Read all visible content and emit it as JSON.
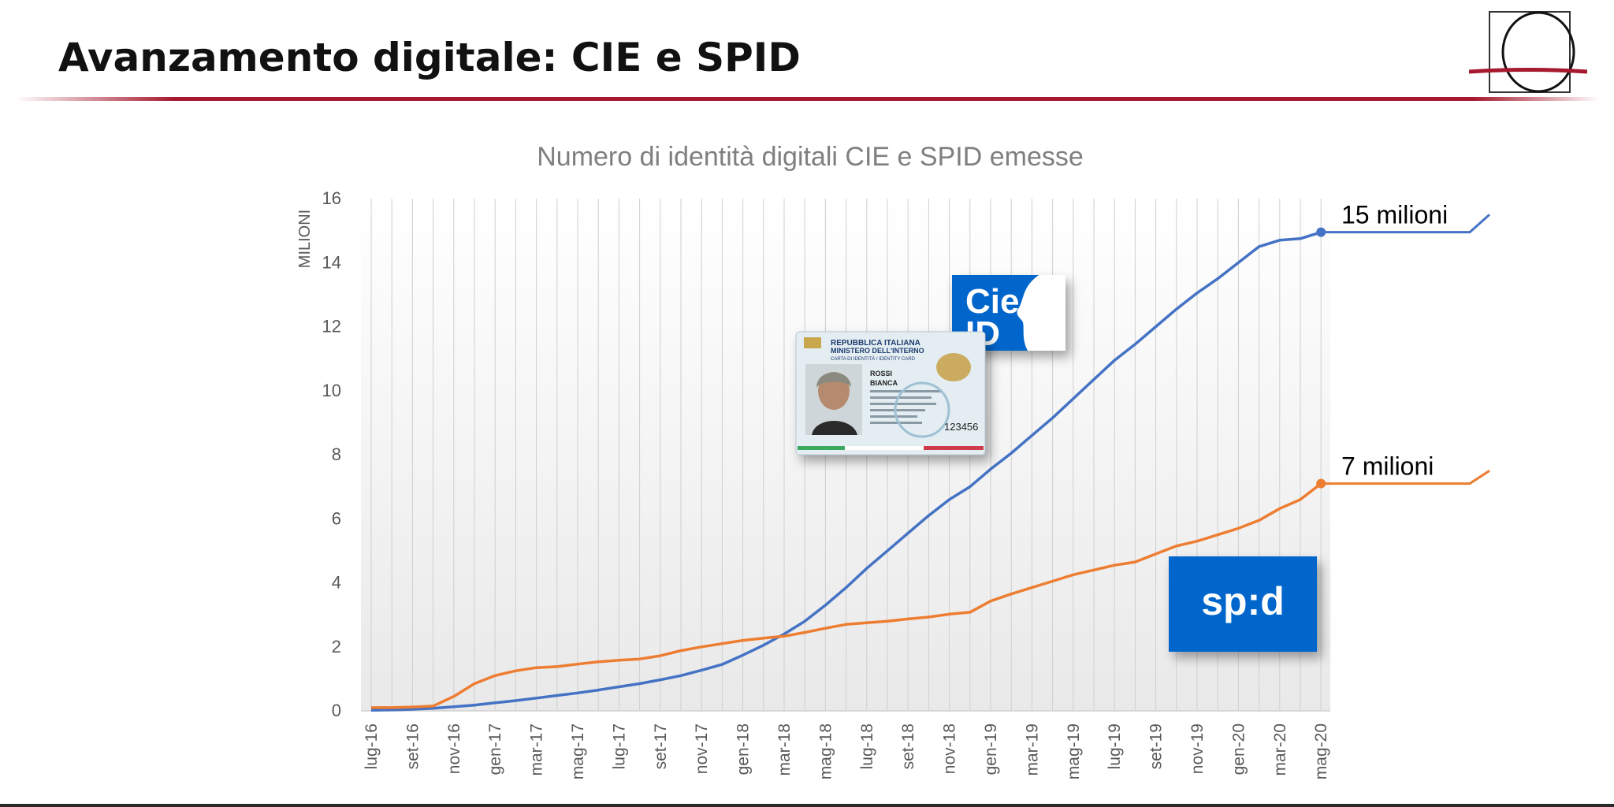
{
  "page": {
    "title": "Avanzamento digitale: CIE e SPID"
  },
  "logos": {
    "cie": {
      "line1": "Cie",
      "line2": "ID",
      "color": "#0066cc"
    },
    "spid": {
      "text": "sp:d",
      "color": "#0066cc"
    },
    "card": {
      "header1": "REPUBBLICA ITALIANA",
      "header2": "MINISTERO DELL'INTERNO",
      "header3": "CARTA DI IDENTITÀ / IDENTITY CARD",
      "surname": "ROSSI",
      "name": "BIANCA",
      "number": "123456"
    }
  },
  "chart_data": {
    "type": "line",
    "title": "Numero di identità digitali CIE e SPID emesse",
    "ylabel": "MILIONI",
    "ylim": [
      0,
      16
    ],
    "yticks": [
      0,
      2,
      4,
      6,
      8,
      10,
      12,
      14,
      16
    ],
    "xtick_labels": [
      "lug-16",
      "set-16",
      "nov-16",
      "gen-17",
      "mar-17",
      "mag-17",
      "lug-17",
      "set-17",
      "nov-17",
      "gen-18",
      "mar-18",
      "mag-18",
      "lug-18",
      "set-18",
      "nov-18",
      "gen-19",
      "mar-19",
      "mag-19",
      "lug-19",
      "set-19",
      "nov-19",
      "gen-20",
      "mar-20",
      "mag-20"
    ],
    "x": [
      "lug-16",
      "ago-16",
      "set-16",
      "ott-16",
      "nov-16",
      "dic-16",
      "gen-17",
      "feb-17",
      "mar-17",
      "apr-17",
      "mag-17",
      "giu-17",
      "lug-17",
      "ago-17",
      "set-17",
      "ott-17",
      "nov-17",
      "dic-17",
      "gen-18",
      "feb-18",
      "mar-18",
      "apr-18",
      "mag-18",
      "giu-18",
      "lug-18",
      "ago-18",
      "set-18",
      "ott-18",
      "nov-18",
      "dic-18",
      "gen-19",
      "feb-19",
      "mar-19",
      "apr-19",
      "mag-19",
      "giu-19",
      "lug-19",
      "ago-19",
      "set-19",
      "ott-19",
      "nov-19",
      "dic-19",
      "gen-20",
      "feb-20",
      "mar-20",
      "apr-20",
      "mag-20"
    ],
    "series": [
      {
        "name": "CIE",
        "color": "#4472c4",
        "values": [
          0.02,
          0.03,
          0.05,
          0.08,
          0.13,
          0.18,
          0.25,
          0.32,
          0.4,
          0.48,
          0.56,
          0.65,
          0.75,
          0.85,
          0.97,
          1.1,
          1.27,
          1.45,
          1.74,
          2.05,
          2.4,
          2.8,
          3.3,
          3.85,
          4.45,
          5.0,
          5.55,
          6.1,
          6.6,
          7.0,
          7.55,
          8.05,
          8.6,
          9.15,
          9.75,
          10.35,
          10.95,
          11.45,
          12.0,
          12.55,
          13.05,
          13.5,
          14.0,
          14.5,
          14.7,
          14.75,
          14.95
        ]
      },
      {
        "name": "SPID",
        "color": "#ed7d31",
        "values": [
          0.1,
          0.1,
          0.12,
          0.15,
          0.45,
          0.85,
          1.1,
          1.25,
          1.35,
          1.38,
          1.46,
          1.53,
          1.58,
          1.62,
          1.72,
          1.88,
          2.0,
          2.1,
          2.2,
          2.27,
          2.33,
          2.45,
          2.58,
          2.7,
          2.75,
          2.8,
          2.87,
          2.93,
          3.02,
          3.08,
          3.43,
          3.65,
          3.85,
          4.05,
          4.25,
          4.4,
          4.55,
          4.65,
          4.9,
          5.15,
          5.3,
          5.5,
          5.7,
          5.95,
          6.32,
          6.6,
          7.1
        ]
      }
    ],
    "annotations": [
      {
        "text": "15 milioni",
        "series": "CIE",
        "value": 15
      },
      {
        "text": "7 milioni",
        "series": "SPID",
        "value": 7
      }
    ],
    "vertical_gridlines": true,
    "legend": "none"
  }
}
